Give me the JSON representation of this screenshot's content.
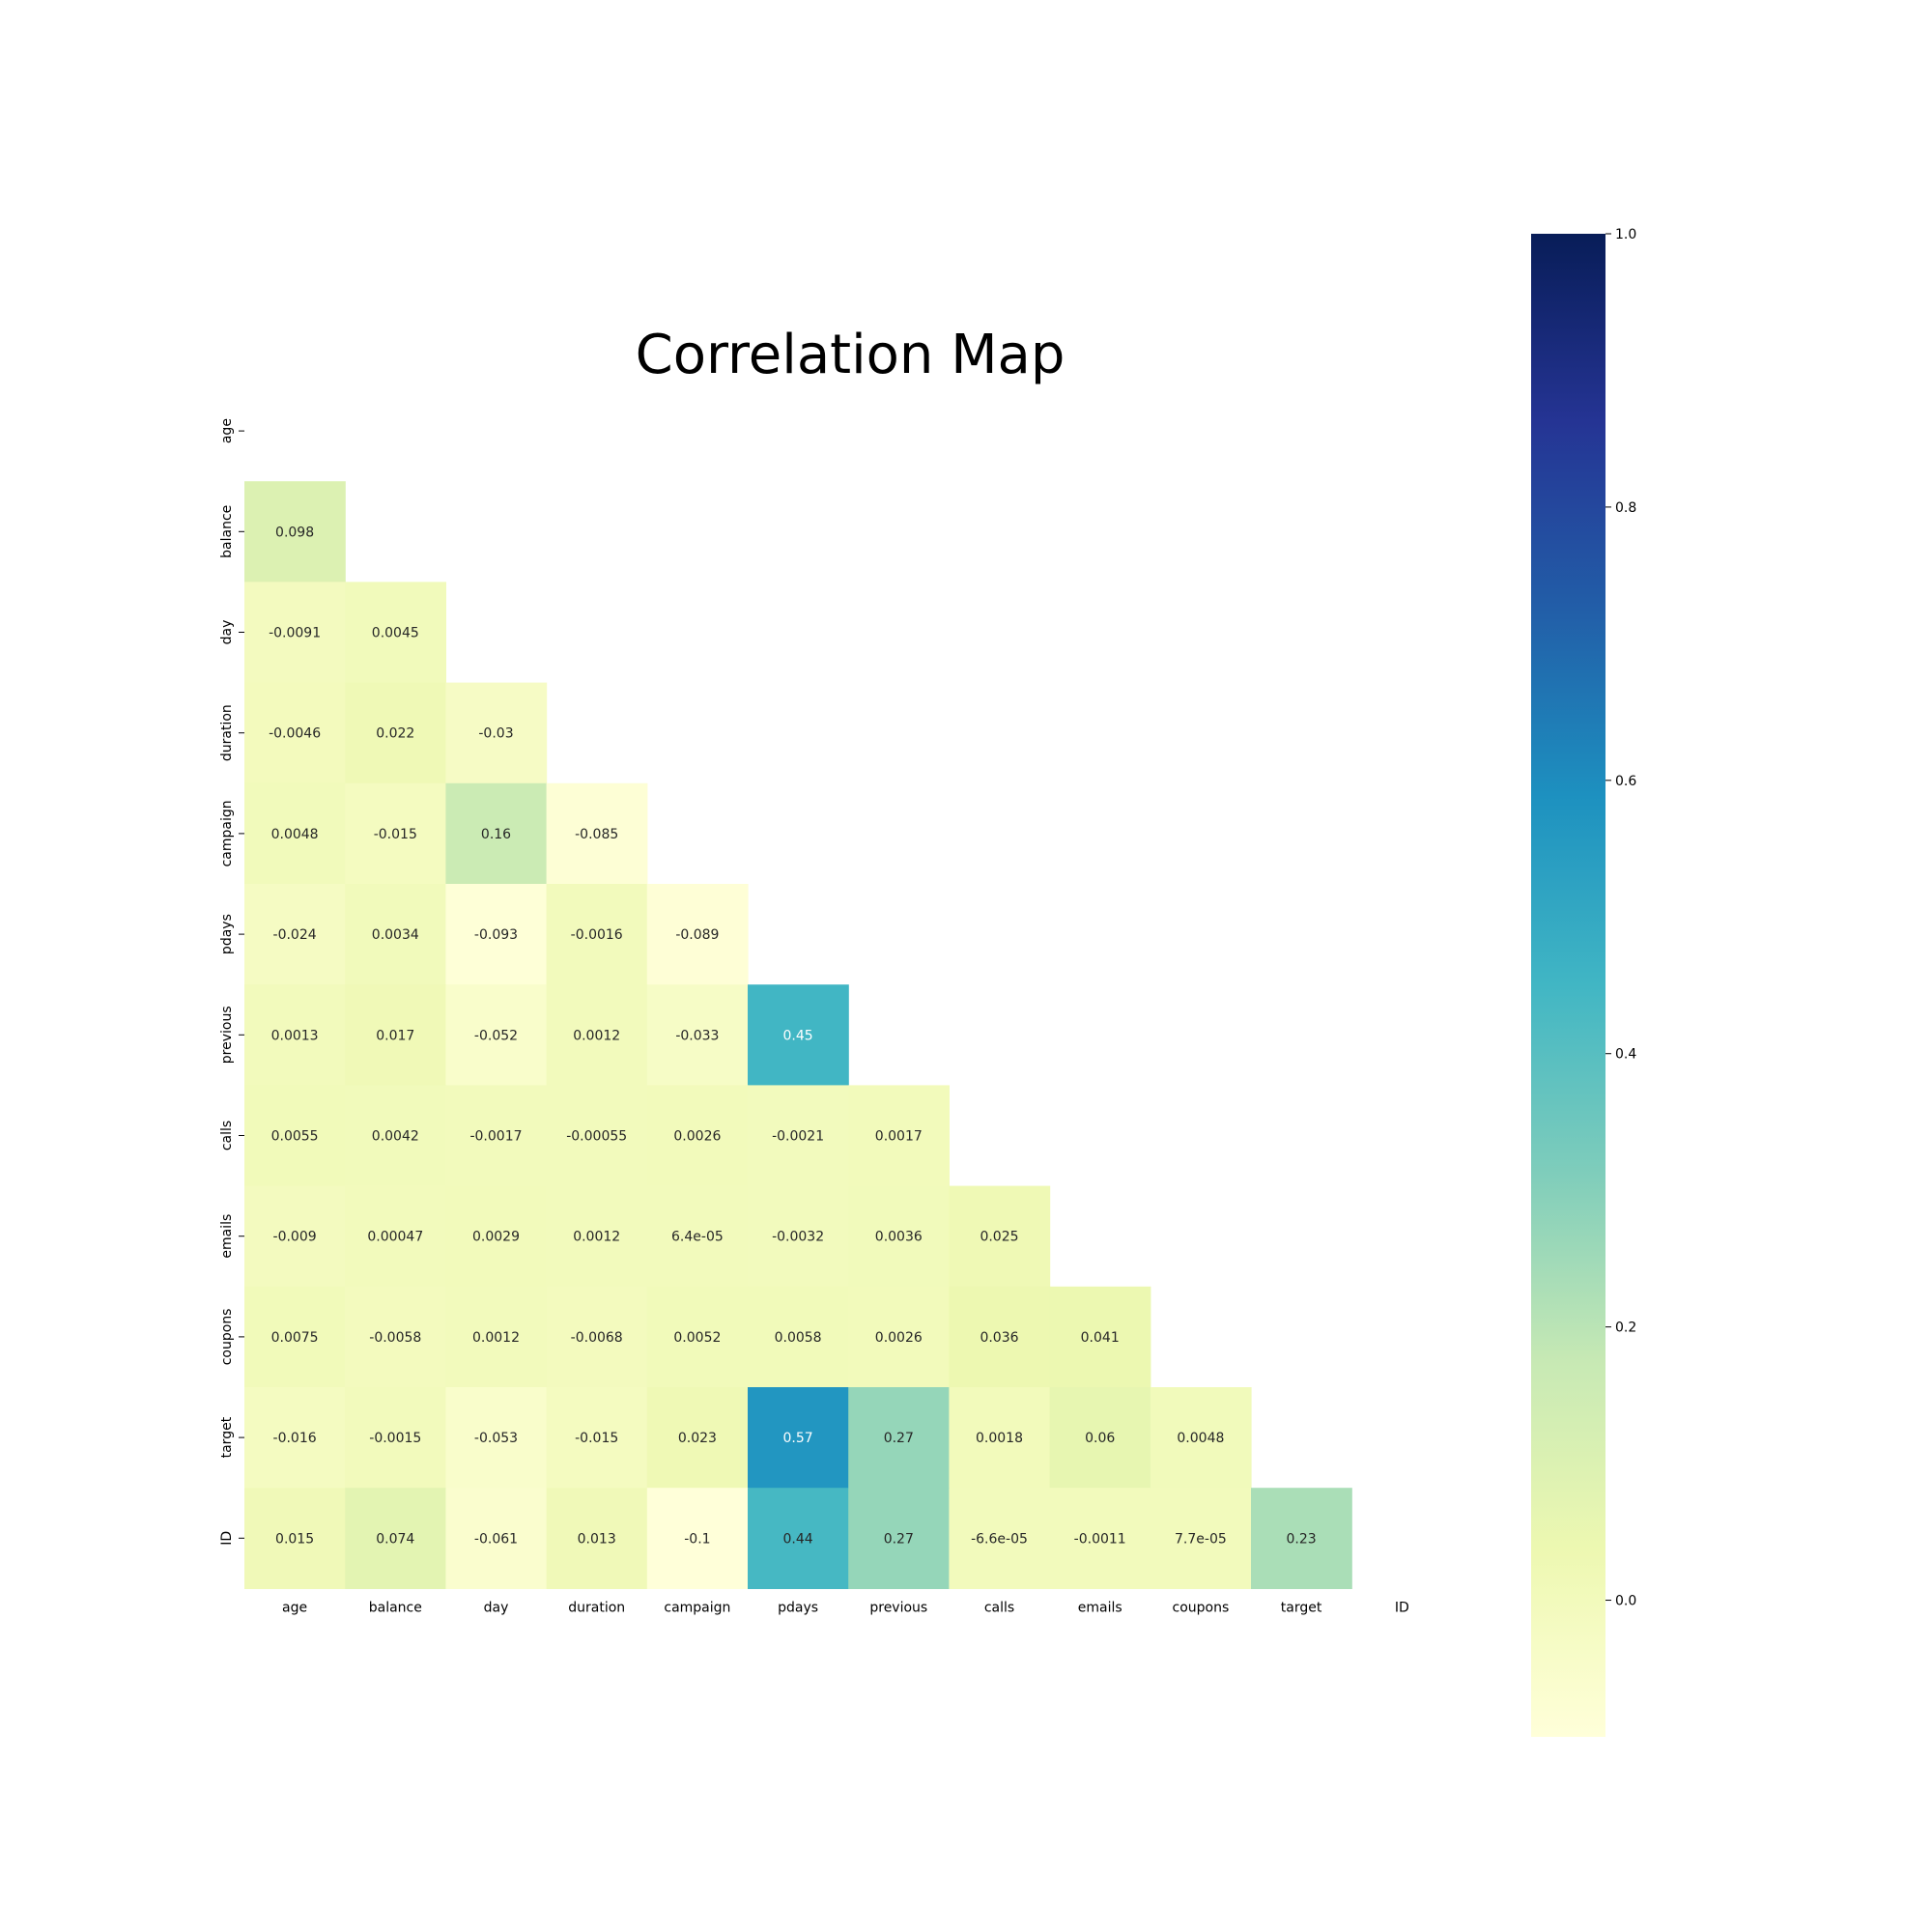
{
  "chart_data": {
    "type": "heatmap",
    "title": "Correlation Map",
    "xlabel": "",
    "ylabel": "",
    "colormap": "YlGnBu",
    "mask": "upper-triangle-including-diagonal",
    "variables": [
      "age",
      "balance",
      "day",
      "duration",
      "campaign",
      "pdays",
      "previous",
      "calls",
      "emails",
      "coupons",
      "target",
      "ID"
    ],
    "value_range": [
      -0.1,
      1.0
    ],
    "matrix": [
      [],
      [
        "0.098"
      ],
      [
        "-0.0091",
        "0.0045"
      ],
      [
        "-0.0046",
        "0.022",
        "-0.03"
      ],
      [
        "0.0048",
        "-0.015",
        "0.16",
        "-0.085"
      ],
      [
        "-0.024",
        "0.0034",
        "-0.093",
        "-0.0016",
        "-0.089"
      ],
      [
        "0.0013",
        "0.017",
        "-0.052",
        "0.0012",
        "-0.033",
        "0.45"
      ],
      [
        "0.0055",
        "0.0042",
        "-0.0017",
        "-0.00055",
        "0.0026",
        "-0.0021",
        "0.0017"
      ],
      [
        "-0.009",
        "0.00047",
        "0.0029",
        "0.0012",
        "6.4e-05",
        "-0.0032",
        "0.0036",
        "0.025"
      ],
      [
        "0.0075",
        "-0.0058",
        "0.0012",
        "-0.0068",
        "0.0052",
        "0.0058",
        "0.0026",
        "0.036",
        "0.041"
      ],
      [
        "-0.016",
        "-0.0015",
        "-0.053",
        "-0.015",
        "0.023",
        "0.57",
        "0.27",
        "0.0018",
        "0.06",
        "0.0048"
      ],
      [
        "0.015",
        "0.074",
        "-0.061",
        "0.013",
        "-0.1",
        "0.44",
        "0.27",
        "-6.6e-05",
        "-0.0011",
        "7.7e-05",
        "0.23"
      ]
    ],
    "colorbar_ticks": [
      "0.0",
      "0.2",
      "0.4",
      "0.6",
      "0.8",
      "1.0"
    ]
  }
}
